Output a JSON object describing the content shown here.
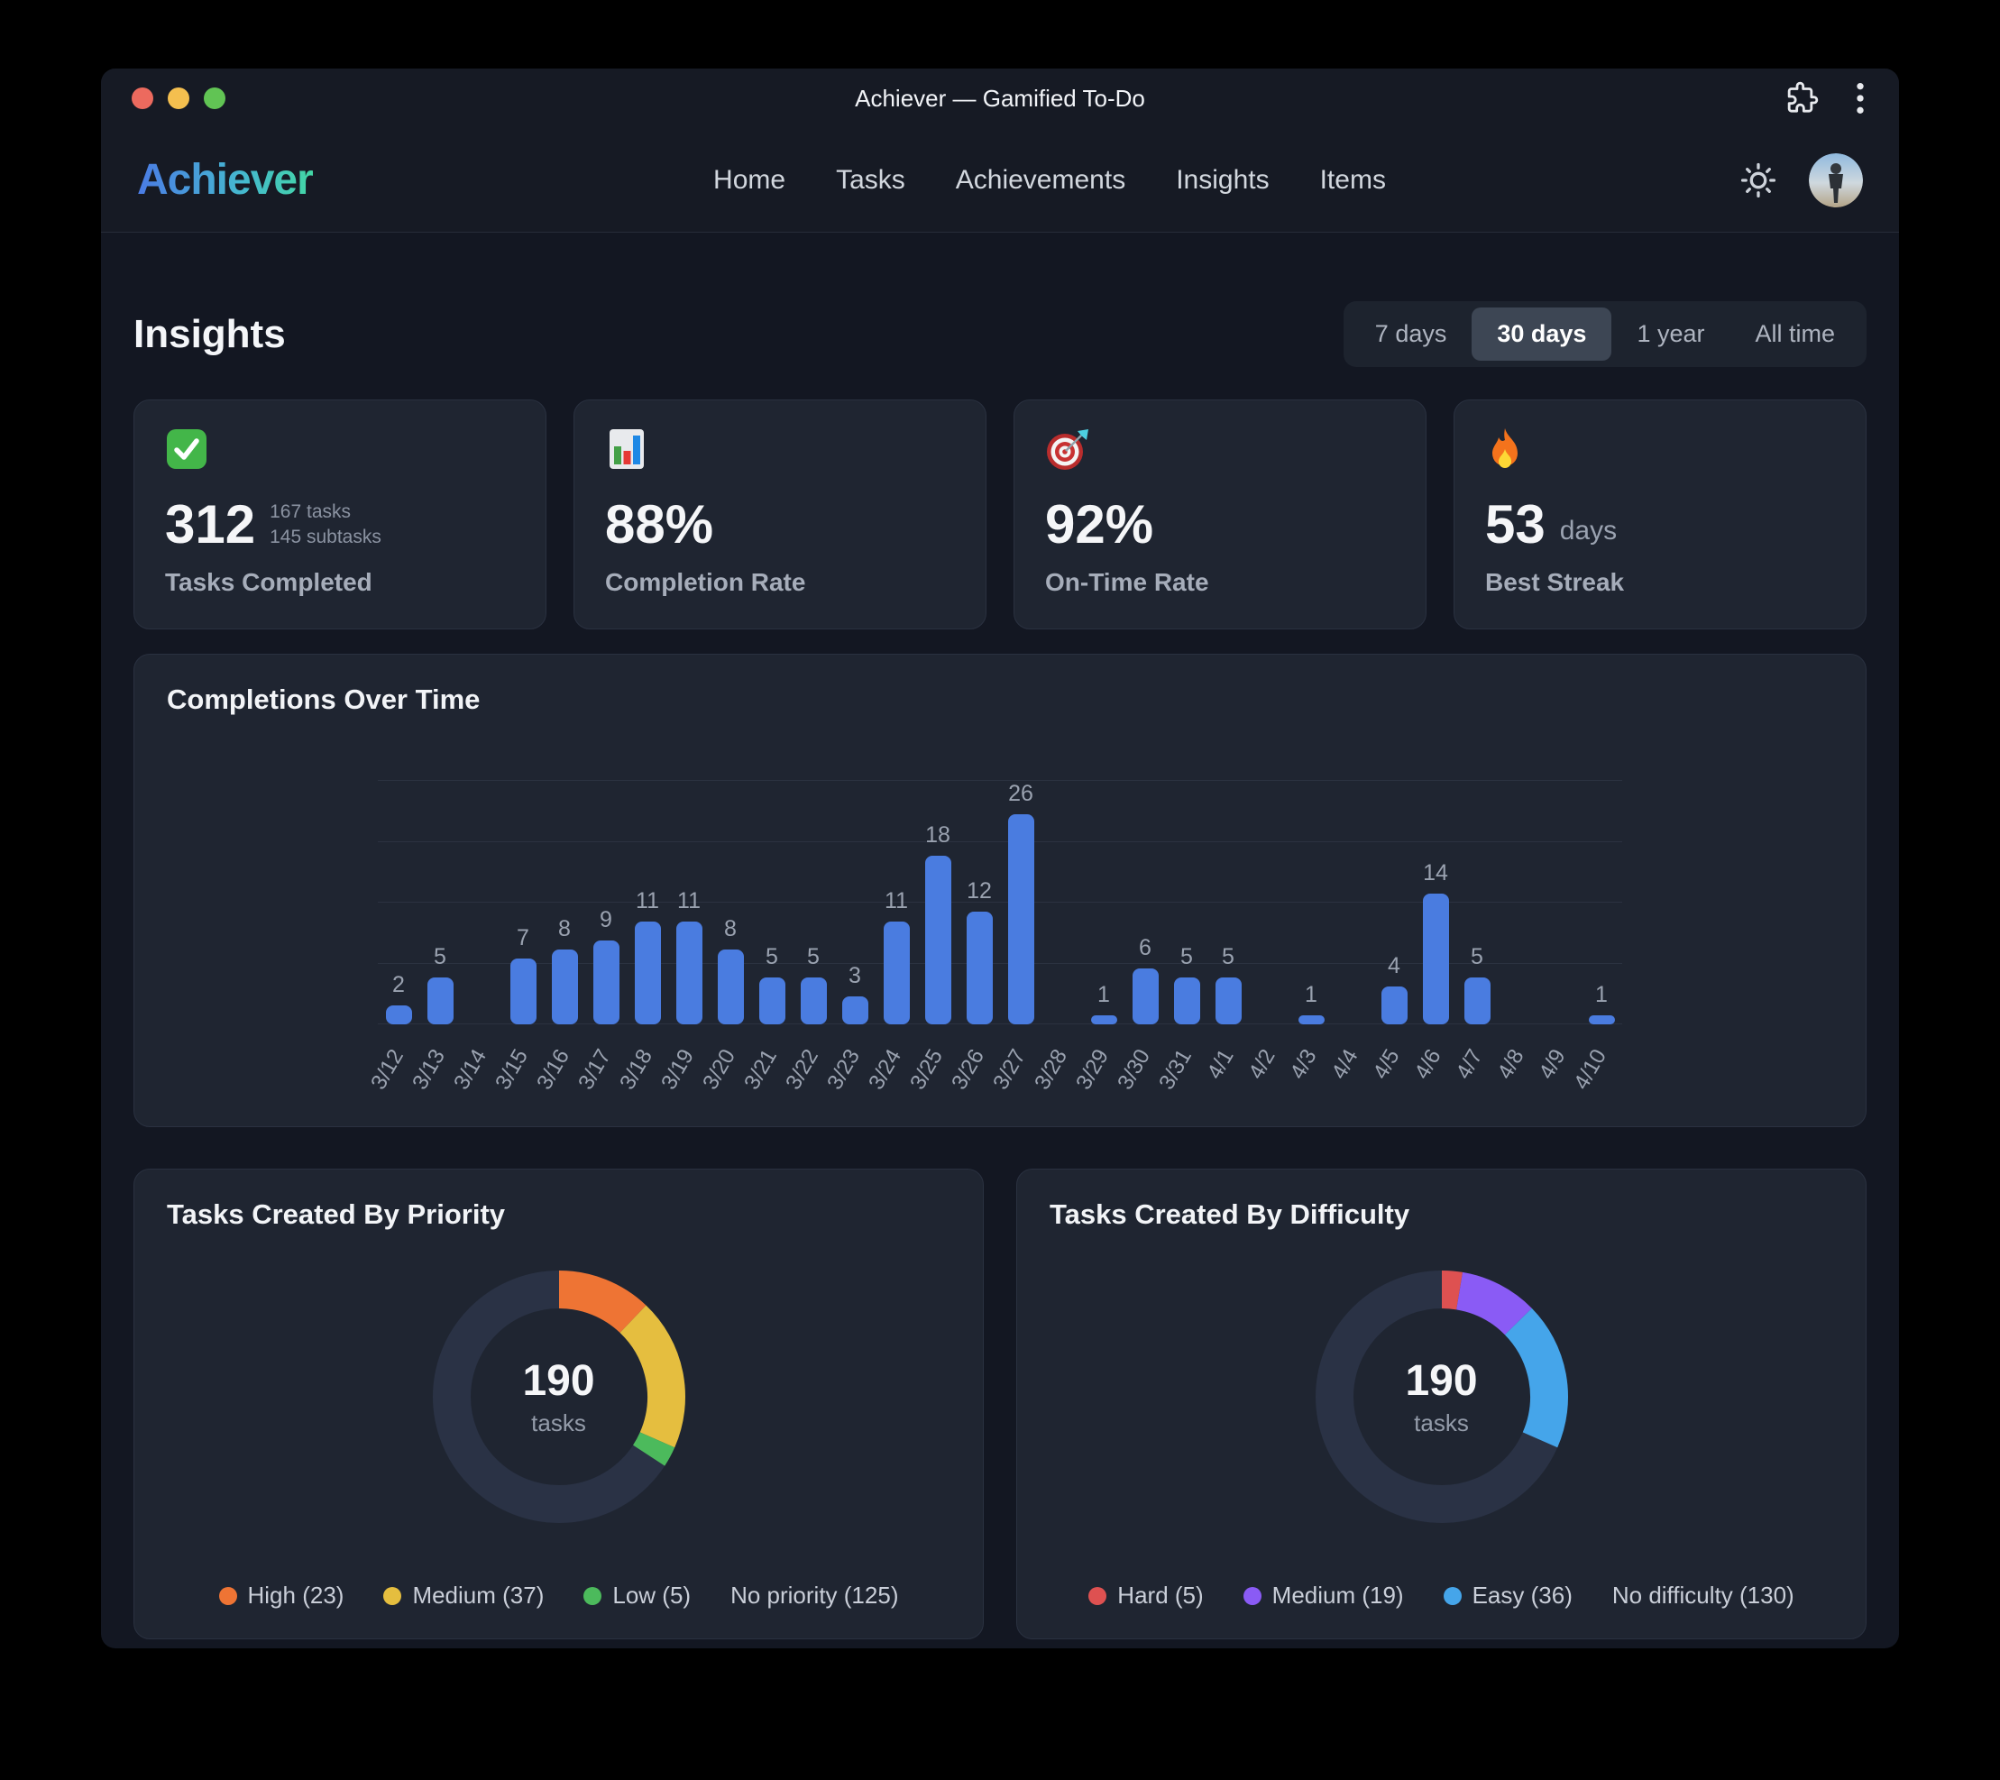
{
  "window": {
    "title": "Achiever — Gamified To-Do"
  },
  "nav": {
    "brand": "Achiever",
    "items": [
      {
        "label": "Home"
      },
      {
        "label": "Tasks"
      },
      {
        "label": "Achievements"
      },
      {
        "label": "Insights"
      },
      {
        "label": "Items"
      }
    ],
    "icons": {
      "extension": "puzzle-icon",
      "menu": "kebab-menu-icon",
      "theme": "sun-icon",
      "avatar": "user-avatar"
    }
  },
  "page": {
    "title": "Insights"
  },
  "range_selector": {
    "options": [
      "7 days",
      "30 days",
      "1 year",
      "All time"
    ],
    "selected": "30 days"
  },
  "stat_cards": [
    {
      "icon": "check-mark-emoji",
      "value": "312",
      "sub": [
        "167 tasks",
        "145 subtasks"
      ],
      "label": "Tasks Completed"
    },
    {
      "icon": "bar-chart-emoji",
      "value": "88%",
      "label": "Completion Rate"
    },
    {
      "icon": "dart-target-emoji",
      "value": "92%",
      "label": "On-Time Rate"
    },
    {
      "icon": "fire-emoji",
      "value": "53",
      "unit": "days",
      "label": "Best Streak"
    }
  ],
  "chart_data": [
    {
      "type": "bar",
      "title": "Completions Over Time",
      "categories": [
        "3/12",
        "3/13",
        "3/14",
        "3/15",
        "3/16",
        "3/17",
        "3/18",
        "3/19",
        "3/20",
        "3/21",
        "3/22",
        "3/23",
        "3/24",
        "3/25",
        "3/26",
        "3/27",
        "3/28",
        "3/29",
        "3/30",
        "3/31",
        "4/1",
        "4/2",
        "4/3",
        "4/4",
        "4/5",
        "4/6",
        "4/7",
        "4/8",
        "4/9",
        "4/10"
      ],
      "values": [
        2,
        5,
        0,
        7,
        8,
        9,
        11,
        11,
        8,
        5,
        5,
        3,
        11,
        18,
        12,
        26,
        0,
        1,
        6,
        5,
        5,
        0,
        1,
        0,
        4,
        14,
        5,
        0,
        0,
        1
      ],
      "xlabel": "",
      "ylabel": "",
      "ylim": [
        0,
        26
      ],
      "gridline_count": 5,
      "grid": true,
      "value_labels": true,
      "x_label_rotation": -60,
      "bar_color": "#4a7ce0"
    },
    {
      "type": "pie",
      "title": "Tasks Created By Priority",
      "center_value": "190",
      "center_label": "tasks",
      "total": 190,
      "segments": [
        {
          "label": "High",
          "value": 23,
          "color": "#ee7434"
        },
        {
          "label": "Medium",
          "value": 37,
          "color": "#e5be3f"
        },
        {
          "label": "Low",
          "value": 5,
          "color": "#4cba5c"
        },
        {
          "label": "No priority",
          "value": 125,
          "color": "#2a3245",
          "is_track": true
        }
      ],
      "legend_position": "bottom"
    },
    {
      "type": "pie",
      "title": "Tasks Created By Difficulty",
      "center_value": "190",
      "center_label": "tasks",
      "total": 190,
      "segments": [
        {
          "label": "Hard",
          "value": 5,
          "color": "#de5151"
        },
        {
          "label": "Medium",
          "value": 19,
          "color": "#8a5bf5"
        },
        {
          "label": "Easy",
          "value": 36,
          "color": "#45a5ea"
        },
        {
          "label": "No difficulty",
          "value": 130,
          "color": "#2a3245",
          "is_track": true
        }
      ],
      "legend_position": "bottom"
    }
  ]
}
